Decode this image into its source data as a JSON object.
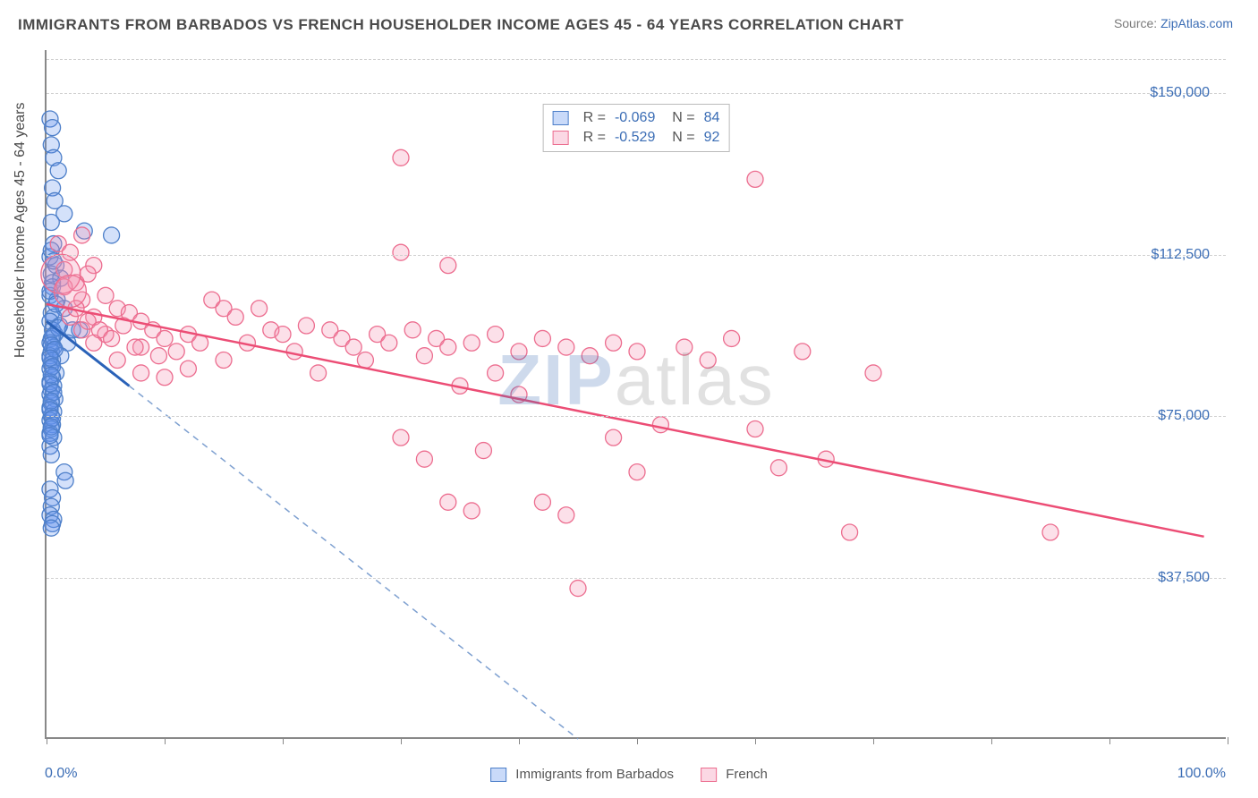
{
  "title": "IMMIGRANTS FROM BARBADOS VS FRENCH HOUSEHOLDER INCOME AGES 45 - 64 YEARS CORRELATION CHART",
  "source_prefix": "Source: ",
  "source_link": "ZipAtlas.com",
  "watermark_bold": "ZIP",
  "watermark_rest": "atlas",
  "chart": {
    "type": "scatter",
    "background_color": "#ffffff",
    "grid_color": "#d0d0d0",
    "axis_color": "#888888",
    "ylabel": "Householder Income Ages 45 - 64 years",
    "ylabel_fontsize": 16,
    "xlim": [
      0,
      100
    ],
    "ylim": [
      0,
      160000
    ],
    "xtick_label_left": "0.0%",
    "xtick_label_right": "100.0%",
    "xtick_positions": [
      0,
      10,
      20,
      30,
      40,
      50,
      60,
      70,
      80,
      90,
      100
    ],
    "ytick_values": [
      37500,
      75000,
      112500,
      150000
    ],
    "ytick_labels": [
      "$37,500",
      "$75,000",
      "$112,500",
      "$150,000"
    ],
    "tick_label_color": "#3b6db5",
    "tick_label_fontsize": 16,
    "series": [
      {
        "name": "Immigrants from Barbados",
        "marker_fill": "rgba(100,149,237,0.28)",
        "marker_stroke": "#4d7fc9",
        "marker_stroke_width": 1.3,
        "marker_radius": 9,
        "trend_color": "#2a62b8",
        "trend_width": 3,
        "trend_dash_color": "#7ea0d0",
        "R": "-0.069",
        "N": "84",
        "trend_solid": {
          "x1": 0,
          "y1": 97000,
          "x2": 7,
          "y2": 82000
        },
        "trend_dashed": {
          "x1": 7,
          "y1": 82000,
          "x2": 45,
          "y2": 0
        },
        "points": [
          [
            0.3,
            144000
          ],
          [
            0.5,
            142000
          ],
          [
            0.4,
            138000
          ],
          [
            0.6,
            135000
          ],
          [
            1.0,
            132000
          ],
          [
            0.5,
            128000
          ],
          [
            0.7,
            125000
          ],
          [
            1.5,
            122000
          ],
          [
            0.4,
            120000
          ],
          [
            3.2,
            118000
          ],
          [
            5.5,
            117000
          ],
          [
            0.6,
            115000
          ],
          [
            0.3,
            112000
          ],
          [
            0.8,
            110000
          ],
          [
            0.4,
            108000
          ],
          [
            1.2,
            107000
          ],
          [
            0.5,
            105000
          ],
          [
            0.3,
            103000
          ],
          [
            0.9,
            102000
          ],
          [
            1.5,
            100000
          ],
          [
            0.4,
            99000
          ],
          [
            0.6,
            98000
          ],
          [
            0.3,
            97000
          ],
          [
            1.1,
            96000
          ],
          [
            0.5,
            95000
          ],
          [
            2.2,
            95000
          ],
          [
            0.7,
            94000
          ],
          [
            0.4,
            93000
          ],
          [
            0.3,
            92000
          ],
          [
            1.8,
            92000
          ],
          [
            2.8,
            95000
          ],
          [
            0.6,
            91000
          ],
          [
            0.4,
            90000
          ],
          [
            0.3,
            89000
          ],
          [
            1.2,
            89000
          ],
          [
            0.5,
            88000
          ],
          [
            0.4,
            87000
          ],
          [
            0.3,
            86000
          ],
          [
            0.8,
            85000
          ],
          [
            0.5,
            84000
          ],
          [
            0.3,
            83000
          ],
          [
            0.6,
            82000
          ],
          [
            0.4,
            81000
          ],
          [
            0.3,
            80000
          ],
          [
            0.7,
            79000
          ],
          [
            0.4,
            78000
          ],
          [
            0.3,
            77000
          ],
          [
            0.6,
            76000
          ],
          [
            0.4,
            75000
          ],
          [
            0.3,
            74000
          ],
          [
            0.5,
            73000
          ],
          [
            0.4,
            72000
          ],
          [
            0.3,
            71000
          ],
          [
            0.6,
            70000
          ],
          [
            0.3,
            68000
          ],
          [
            0.4,
            66000
          ],
          [
            1.5,
            62000
          ],
          [
            1.6,
            60000
          ],
          [
            0.3,
            58000
          ],
          [
            0.5,
            56000
          ],
          [
            0.4,
            54000
          ],
          [
            0.3,
            52000
          ],
          [
            0.6,
            51000
          ],
          [
            0.5,
            50000
          ],
          [
            0.4,
            49000
          ],
          [
            0.4,
            113500
          ],
          [
            0.6,
            111000
          ],
          [
            0.5,
            106000
          ],
          [
            0.3,
            104000
          ],
          [
            0.8,
            101000
          ],
          [
            1.0,
            95500
          ],
          [
            0.5,
            93500
          ],
          [
            0.4,
            91500
          ],
          [
            0.7,
            90500
          ],
          [
            0.3,
            88500
          ],
          [
            0.5,
            86500
          ],
          [
            0.4,
            84500
          ],
          [
            0.3,
            82500
          ],
          [
            0.6,
            80500
          ],
          [
            0.4,
            78500
          ],
          [
            0.3,
            76500
          ],
          [
            0.5,
            74500
          ],
          [
            0.4,
            72500
          ],
          [
            0.3,
            70500
          ]
        ]
      },
      {
        "name": "French",
        "marker_fill": "rgba(244,143,177,0.28)",
        "marker_stroke": "#ec6d8f",
        "marker_stroke_width": 1.3,
        "marker_radius": 9,
        "trend_color": "#ec4d75",
        "trend_width": 2.5,
        "R": "-0.529",
        "N": "92",
        "trend_solid": {
          "x1": 0,
          "y1": 101000,
          "x2": 98,
          "y2": 47000
        },
        "points": [
          [
            1.0,
            115000
          ],
          [
            3.0,
            117000
          ],
          [
            2.0,
            113000
          ],
          [
            4.0,
            110000
          ],
          [
            3.5,
            108000
          ],
          [
            2.5,
            106000
          ],
          [
            1.5,
            105000
          ],
          [
            3.0,
            102000
          ],
          [
            5.0,
            103000
          ],
          [
            6.0,
            100000
          ],
          [
            4.0,
            98000
          ],
          [
            7.0,
            99000
          ],
          [
            8.0,
            97000
          ],
          [
            6.5,
            96000
          ],
          [
            5.0,
            94000
          ],
          [
            9.0,
            95000
          ],
          [
            10.0,
            93000
          ],
          [
            8.0,
            91000
          ],
          [
            12.0,
            94000
          ],
          [
            11.0,
            90000
          ],
          [
            13.0,
            92000
          ],
          [
            14.0,
            102000
          ],
          [
            15.0,
            100000
          ],
          [
            16.0,
            98000
          ],
          [
            18.0,
            100000
          ],
          [
            17.0,
            92000
          ],
          [
            19.0,
            95000
          ],
          [
            20.0,
            94000
          ],
          [
            22.0,
            96000
          ],
          [
            21.0,
            90000
          ],
          [
            24.0,
            95000
          ],
          [
            25.0,
            93000
          ],
          [
            26.0,
            91000
          ],
          [
            28.0,
            94000
          ],
          [
            30.0,
            113000
          ],
          [
            27.0,
            88000
          ],
          [
            29.0,
            92000
          ],
          [
            31.0,
            95000
          ],
          [
            32.0,
            89000
          ],
          [
            33.0,
            93000
          ],
          [
            34.0,
            91000
          ],
          [
            36.0,
            92000
          ],
          [
            38.0,
            94000
          ],
          [
            40.0,
            90000
          ],
          [
            42.0,
            93000
          ],
          [
            44.0,
            91000
          ],
          [
            46.0,
            89000
          ],
          [
            48.0,
            92000
          ],
          [
            50.0,
            90000
          ],
          [
            30.0,
            135000
          ],
          [
            34.0,
            110000
          ],
          [
            30.0,
            70000
          ],
          [
            32.0,
            65000
          ],
          [
            34.0,
            55000
          ],
          [
            36.0,
            53000
          ],
          [
            37.0,
            67000
          ],
          [
            38.0,
            85000
          ],
          [
            40.0,
            80000
          ],
          [
            42.0,
            55000
          ],
          [
            44.0,
            52000
          ],
          [
            45.0,
            35000
          ],
          [
            48.0,
            70000
          ],
          [
            50.0,
            62000
          ],
          [
            52.0,
            73000
          ],
          [
            54.0,
            91000
          ],
          [
            56.0,
            88000
          ],
          [
            58.0,
            93000
          ],
          [
            60.0,
            72000
          ],
          [
            60.0,
            130000
          ],
          [
            62.0,
            63000
          ],
          [
            64.0,
            90000
          ],
          [
            66.0,
            65000
          ],
          [
            68.0,
            48000
          ],
          [
            70.0,
            85000
          ],
          [
            85.0,
            48000
          ],
          [
            23.0,
            85000
          ],
          [
            35.0,
            82000
          ],
          [
            15.0,
            88000
          ],
          [
            12.0,
            86000
          ],
          [
            10.0,
            84000
          ],
          [
            8.0,
            85000
          ],
          [
            6.0,
            88000
          ],
          [
            4.0,
            92000
          ],
          [
            3.0,
            95000
          ],
          [
            2.0,
            98000
          ],
          [
            1.5,
            109000
          ],
          [
            2.5,
            100000
          ],
          [
            3.5,
            97000
          ],
          [
            4.5,
            95000
          ],
          [
            5.5,
            93000
          ],
          [
            7.5,
            91000
          ],
          [
            9.5,
            89000
          ]
        ],
        "large_points": [
          {
            "x": 1.2,
            "y": 108000,
            "r": 22
          },
          {
            "x": 2.0,
            "y": 104000,
            "r": 18
          }
        ]
      }
    ],
    "bottom_legend": [
      {
        "label": "Immigrants from Barbados",
        "fill": "rgba(100,149,237,0.35)",
        "stroke": "#4d7fc9"
      },
      {
        "label": "French",
        "fill": "rgba(244,143,177,0.35)",
        "stroke": "#ec6d8f"
      }
    ]
  }
}
